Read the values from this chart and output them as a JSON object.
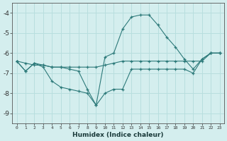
{
  "xlabel": "Humidex (Indice chaleur)",
  "x": [
    0,
    1,
    2,
    3,
    4,
    5,
    6,
    7,
    8,
    9,
    10,
    11,
    12,
    13,
    14,
    15,
    16,
    17,
    18,
    19,
    20,
    21,
    22,
    23
  ],
  "line_flat": [
    -6.4,
    -6.5,
    -6.6,
    -6.6,
    -6.7,
    -6.7,
    -6.7,
    -6.7,
    -6.7,
    -6.7,
    -6.6,
    -6.5,
    -6.4,
    -6.4,
    -6.4,
    -6.4,
    -6.4,
    -6.4,
    -6.4,
    -6.4,
    -6.4,
    -6.4,
    -6.0,
    -6.0
  ],
  "line_peak": [
    -6.4,
    -6.9,
    -6.5,
    -6.6,
    -6.7,
    -6.7,
    -6.8,
    -6.9,
    -7.8,
    -8.6,
    -6.2,
    -6.0,
    -4.8,
    -4.2,
    -4.1,
    -4.1,
    -4.6,
    -5.2,
    -5.7,
    -6.3,
    -6.8,
    -6.3,
    -6.0,
    -6.0
  ],
  "line_dip": [
    -6.4,
    -6.9,
    -6.5,
    -6.7,
    -7.4,
    -7.7,
    -7.8,
    -7.9,
    -8.0,
    -8.6,
    -8.0,
    -7.8,
    -7.8,
    -6.8,
    -6.8,
    -6.8,
    -6.8,
    -6.8,
    -6.8,
    -6.8,
    -7.0,
    -6.3,
    -6.0,
    -6.0
  ],
  "line_color": "#2d7a7a",
  "bg_color": "#d4eeee",
  "grid_color": "#b8dede",
  "ylim": [
    -9.5,
    -3.5
  ],
  "xlim": [
    -0.5,
    23.5
  ]
}
